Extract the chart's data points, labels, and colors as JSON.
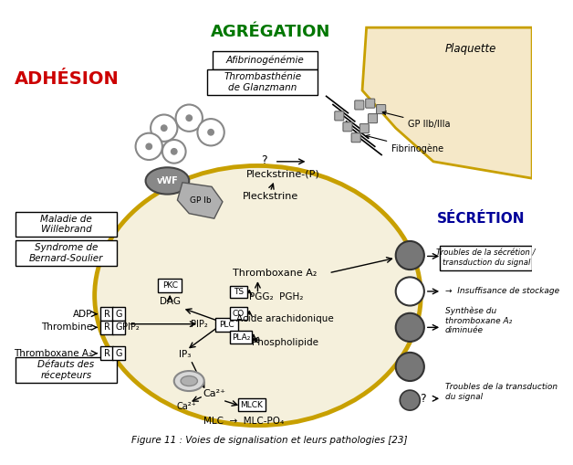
{
  "title": "Figure 11 : Voies de signalisation et leurs pathologies [23]",
  "bg_color": "#ffffff",
  "cell_color": "#f5f0dc",
  "cell_border_color": "#c8a000",
  "adhesion_label": "ADHÉSION",
  "aggregation_label": "AGRÉGATION",
  "secretion_label": "SÉCRÉTION",
  "adhesion_color": "#cc0000",
  "aggregation_color": "#007700",
  "secretion_color": "#000099"
}
